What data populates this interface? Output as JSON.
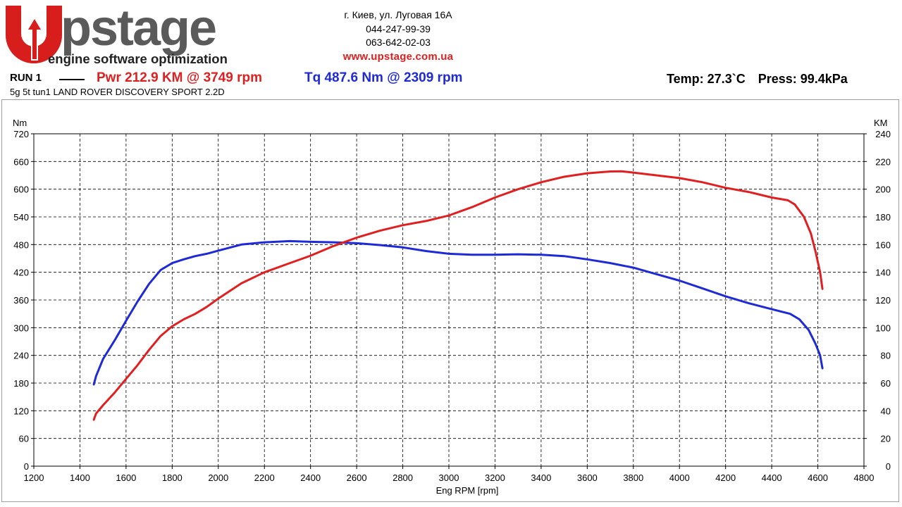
{
  "header": {
    "logo": {
      "wordmark": "Upstage",
      "tagline": "engine software optimization"
    },
    "contact": {
      "address": "г. Киев, ул. Луговая 16А",
      "phone1": "044-247-99-39",
      "phone2": "063-642-02-03",
      "website": "www.upstage.com.ua"
    },
    "run_label": "RUN 1",
    "power_summary": "Pwr  212.9 KM @ 3749 rpm",
    "torque_summary": "Tq 487.6 Nm @ 2309 rpm",
    "temp": "Temp: 27.3`C",
    "press": "Press: 99.4kPa",
    "caption": "5g 5t tun1 LAND ROVER DISCOVERY SPORT 2.2D"
  },
  "colors": {
    "power": "#e02020",
    "torque": "#1d2ad6",
    "logo_red": "#d81d1d",
    "logo_gray": "#5a5a5a"
  },
  "chart_data": {
    "type": "line",
    "xlabel": "Eng RPM [rpm]",
    "ylabel_left": "Nm",
    "ylabel_right": "KM",
    "xlim": [
      1200,
      4800
    ],
    "x_ticks": [
      1200,
      1400,
      1600,
      1800,
      2000,
      2200,
      2400,
      2600,
      2800,
      3000,
      3200,
      3400,
      3600,
      3800,
      4000,
      4200,
      4400,
      4600,
      4800
    ],
    "ylim_left": [
      0,
      720
    ],
    "y_ticks_left": [
      0,
      60,
      120,
      180,
      240,
      300,
      360,
      420,
      480,
      540,
      600,
      660,
      720
    ],
    "ylim_right": [
      0,
      240
    ],
    "y_ticks_right": [
      0,
      20,
      40,
      60,
      80,
      100,
      120,
      140,
      160,
      180,
      200,
      220,
      240
    ],
    "grid": true,
    "series": [
      {
        "name": "Tq",
        "axis": "left",
        "color": "#1d2ad6",
        "points": [
          [
            1460,
            177
          ],
          [
            1470,
            195
          ],
          [
            1500,
            232
          ],
          [
            1550,
            272
          ],
          [
            1600,
            315
          ],
          [
            1650,
            357
          ],
          [
            1700,
            395
          ],
          [
            1750,
            425
          ],
          [
            1800,
            440
          ],
          [
            1850,
            448
          ],
          [
            1900,
            455
          ],
          [
            1950,
            460
          ],
          [
            2000,
            467
          ],
          [
            2100,
            480
          ],
          [
            2200,
            485
          ],
          [
            2309,
            487.6
          ],
          [
            2400,
            486
          ],
          [
            2500,
            485
          ],
          [
            2600,
            483
          ],
          [
            2700,
            479
          ],
          [
            2800,
            474
          ],
          [
            2900,
            466
          ],
          [
            3000,
            460
          ],
          [
            3100,
            458
          ],
          [
            3200,
            458
          ],
          [
            3300,
            459
          ],
          [
            3400,
            458
          ],
          [
            3500,
            455
          ],
          [
            3600,
            448
          ],
          [
            3700,
            440
          ],
          [
            3800,
            430
          ],
          [
            3900,
            416
          ],
          [
            4000,
            402
          ],
          [
            4100,
            385
          ],
          [
            4200,
            368
          ],
          [
            4300,
            353
          ],
          [
            4400,
            340
          ],
          [
            4480,
            330
          ],
          [
            4520,
            318
          ],
          [
            4560,
            295
          ],
          [
            4590,
            265
          ],
          [
            4610,
            240
          ],
          [
            4620,
            212
          ]
        ]
      },
      {
        "name": "Pwr",
        "axis": "right",
        "color": "#e02020",
        "points": [
          [
            1460,
            33.5
          ],
          [
            1470,
            38
          ],
          [
            1500,
            44
          ],
          [
            1550,
            53
          ],
          [
            1600,
            63
          ],
          [
            1650,
            73
          ],
          [
            1700,
            84
          ],
          [
            1750,
            94
          ],
          [
            1800,
            101
          ],
          [
            1850,
            106
          ],
          [
            1900,
            110
          ],
          [
            1950,
            115
          ],
          [
            2000,
            121
          ],
          [
            2100,
            132
          ],
          [
            2200,
            140
          ],
          [
            2300,
            146
          ],
          [
            2400,
            152
          ],
          [
            2500,
            159
          ],
          [
            2600,
            165
          ],
          [
            2700,
            170
          ],
          [
            2800,
            174
          ],
          [
            2900,
            177
          ],
          [
            3000,
            181
          ],
          [
            3100,
            187
          ],
          [
            3200,
            194
          ],
          [
            3300,
            200
          ],
          [
            3400,
            205
          ],
          [
            3500,
            209
          ],
          [
            3600,
            211.5
          ],
          [
            3700,
            212.8
          ],
          [
            3749,
            212.9
          ],
          [
            3800,
            212
          ],
          [
            3900,
            210
          ],
          [
            4000,
            208
          ],
          [
            4100,
            205
          ],
          [
            4200,
            201
          ],
          [
            4300,
            198
          ],
          [
            4400,
            194
          ],
          [
            4470,
            192
          ],
          [
            4500,
            189
          ],
          [
            4540,
            180
          ],
          [
            4570,
            168
          ],
          [
            4590,
            155
          ],
          [
            4610,
            140
          ],
          [
            4620,
            128
          ]
        ]
      }
    ]
  }
}
